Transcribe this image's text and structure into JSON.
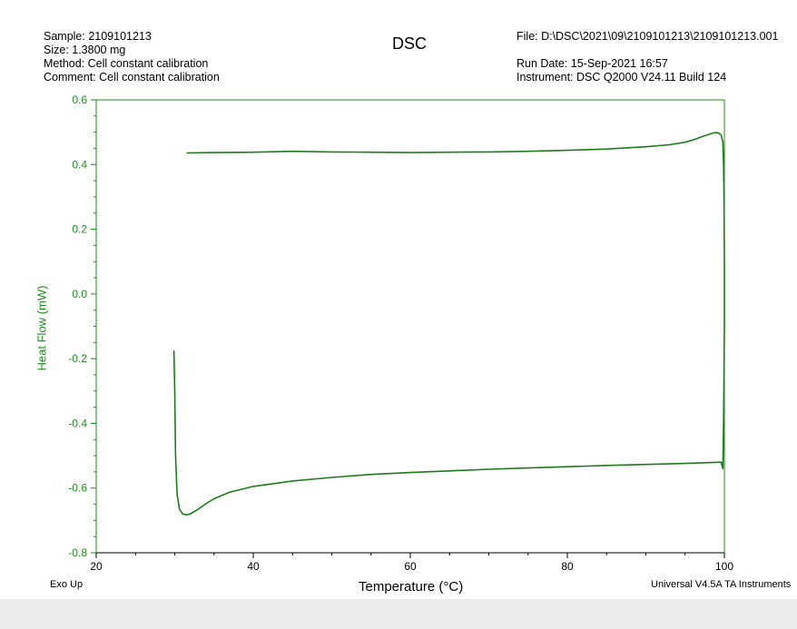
{
  "header": {
    "sample": "Sample: 2109101213",
    "size": "Size:  1.3800 mg",
    "method": "Method: Cell constant calibration",
    "comment": "Comment: Cell constant calibration",
    "file": "File: D:\\DSC\\2021\\09\\2109101213\\2109101213.001",
    "run_date": "Run Date: 15-Sep-2021 16:57",
    "instrument": "Instrument: DSC Q2000 V24.11 Build 124"
  },
  "footer": {
    "exo": "Exo Up",
    "software": "Universal V4.5A TA Instruments"
  },
  "colors": {
    "curve": "#1e7b1e",
    "y_axis": "#1f8a1f",
    "x_axis": "#000000"
  },
  "chart_data": {
    "type": "line",
    "title": "DSC",
    "xlabel": "Temperature (°C)",
    "ylabel": "Heat Flow (mW)",
    "xlim": [
      20,
      100
    ],
    "ylim": [
      -0.8,
      0.6
    ],
    "x_ticks": [
      20,
      40,
      60,
      80,
      100
    ],
    "y_ticks": [
      -0.8,
      -0.6,
      -0.4,
      -0.2,
      0.0,
      0.2,
      0.4,
      0.6
    ],
    "x_tick_labels": [
      "20",
      "40",
      "60",
      "80",
      "100"
    ],
    "y_tick_labels": [
      "-0.8",
      "-0.6",
      "-0.4",
      "-0.2",
      "0.0",
      "0.2",
      "0.4",
      "0.6"
    ],
    "grid": false,
    "series": [
      {
        "x": [
          29.9,
          30.0,
          30.1,
          30.3,
          30.6,
          31.0,
          31.5,
          32.0,
          33.0,
          34.0,
          35.0,
          37.0,
          40.0,
          45.0,
          50.0,
          55.0,
          60.0,
          65.0,
          70.0,
          75.0,
          80.0,
          85.0,
          90.0,
          95.0,
          99.6,
          99.8,
          99.9,
          100.0,
          100.0,
          99.95,
          99.9,
          99.8,
          99.6,
          99.3,
          99.0,
          98.5,
          98.0,
          97.0,
          96.0,
          95.0,
          93.0,
          90.0,
          85.0,
          80.0,
          75.0,
          70.0,
          65.0,
          60.0,
          55.0,
          50.0,
          45.0,
          40.0,
          35.0,
          31.5
        ],
        "y": [
          -0.175,
          -0.3,
          -0.5,
          -0.62,
          -0.665,
          -0.68,
          -0.683,
          -0.68,
          -0.665,
          -0.648,
          -0.633,
          -0.613,
          -0.595,
          -0.578,
          -0.567,
          -0.558,
          -0.552,
          -0.547,
          -0.542,
          -0.538,
          -0.534,
          -0.53,
          -0.527,
          -0.524,
          -0.52,
          -0.54,
          -0.4,
          -0.1,
          0.1,
          0.3,
          0.4,
          0.47,
          0.49,
          0.497,
          0.499,
          0.497,
          0.493,
          0.485,
          0.476,
          0.469,
          0.461,
          0.455,
          0.448,
          0.444,
          0.441,
          0.439,
          0.438,
          0.437,
          0.438,
          0.439,
          0.441,
          0.438,
          0.437,
          0.436
        ]
      }
    ]
  }
}
